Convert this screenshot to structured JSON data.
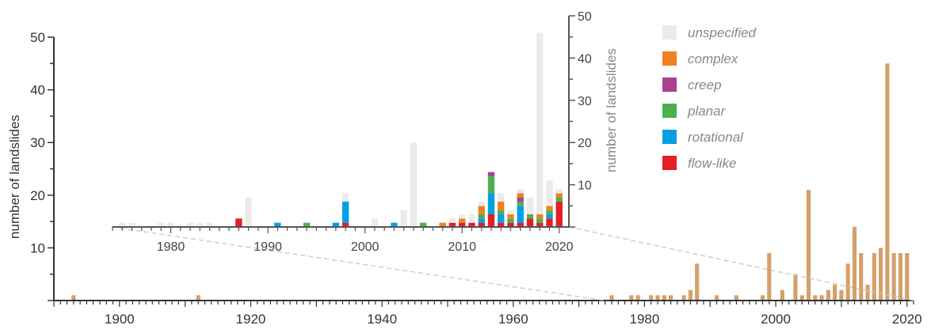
{
  "chart_data": [
    {
      "type": "bar",
      "ylabel": "number of landslides",
      "xlim": [
        1890,
        2021
      ],
      "ylim": [
        0,
        50
      ],
      "x_ticks": [
        "1900",
        "1920",
        "1940",
        "1960",
        "1980",
        "2000",
        "2020"
      ],
      "y_ticks": [
        "10",
        "20",
        "30",
        "40",
        "50"
      ],
      "bar_color": "#d4a06a",
      "x": [
        1893,
        1912,
        1975,
        1978,
        1979,
        1981,
        1982,
        1983,
        1984,
        1986,
        1987,
        1988,
        1991,
        1994,
        1998,
        1999,
        2001,
        2003,
        2004,
        2005,
        2006,
        2007,
        2008,
        2009,
        2010,
        2011,
        2012,
        2013,
        2014,
        2015,
        2016,
        2017,
        2018,
        2019,
        2020
      ],
      "values": [
        1,
        1,
        1,
        1,
        1,
        1,
        1,
        1,
        1,
        1,
        2,
        7,
        1,
        1,
        1,
        9,
        2,
        5,
        1,
        21,
        1,
        1,
        2,
        3,
        2,
        7,
        14,
        9,
        3,
        9,
        10,
        45,
        9,
        9,
        9
      ]
    },
    {
      "type": "bar",
      "stacked": true,
      "ylabel": "number of landslides",
      "xlim": [
        1974,
        2021
      ],
      "ylim": [
        0,
        50
      ],
      "x_ticks": [
        "1980",
        "1990",
        "2000",
        "2010",
        "2020"
      ],
      "y_ticks": [
        "10",
        "20",
        "30",
        "40",
        "50"
      ],
      "legend_position": "right",
      "series": [
        {
          "name": "flow-like",
          "color": "#e31e24",
          "x": [
            1987,
            1998,
            2009,
            2010,
            2011,
            2012,
            2013,
            2014,
            2015,
            2016,
            2017,
            2018,
            2019,
            2020
          ],
          "values": [
            2,
            1,
            1,
            1,
            1,
            1,
            3,
            1,
            1,
            1,
            2,
            1,
            2,
            6
          ]
        },
        {
          "name": "rotational",
          "color": "#00a0e3",
          "x": [
            1991,
            1997,
            1998,
            2003,
            2012,
            2013,
            2014,
            2016,
            2019
          ],
          "values": [
            1,
            1,
            5,
            1,
            1,
            5,
            2,
            4,
            1
          ]
        },
        {
          "name": "planar",
          "color": "#4cb050",
          "x": [
            1994,
            2006,
            2012,
            2013,
            2014,
            2015,
            2016,
            2017,
            2018,
            2019,
            2020
          ],
          "values": [
            1,
            1,
            1,
            4,
            1,
            1,
            1,
            1,
            1,
            1,
            1
          ]
        },
        {
          "name": "creep",
          "color": "#a9418e",
          "x": [
            2013,
            2016
          ],
          "values": [
            1,
            1
          ]
        },
        {
          "name": "complex",
          "color": "#f0811e",
          "x": [
            2008,
            2010,
            2012,
            2014,
            2015,
            2016,
            2018,
            2019,
            2020
          ],
          "values": [
            1,
            1,
            2,
            2,
            1,
            1,
            1,
            1,
            1
          ]
        },
        {
          "name": "unspecified",
          "color": "#ebebeb",
          "x": [
            1975,
            1976,
            1979,
            1980,
            1982,
            1983,
            1984,
            1988,
            1998,
            2001,
            2004,
            2005,
            2009,
            2010,
            2011,
            2012,
            2014,
            2015,
            2016,
            2017,
            2018,
            2019,
            2020
          ],
          "values": [
            1,
            1,
            1,
            1,
            1,
            1,
            1,
            7,
            2,
            2,
            4,
            20,
            1,
            1,
            2,
            1,
            2,
            1,
            1,
            4,
            43,
            6,
            1
          ]
        }
      ]
    }
  ]
}
